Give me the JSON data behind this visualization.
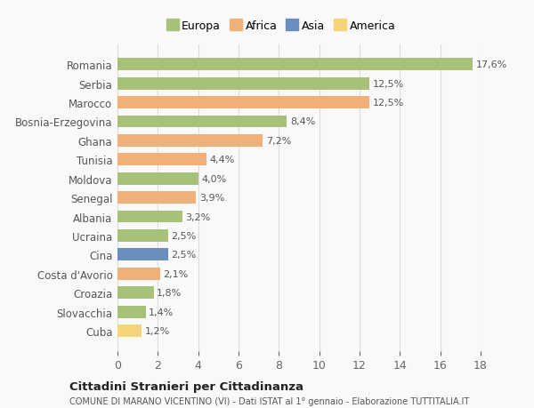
{
  "countries": [
    "Romania",
    "Serbia",
    "Marocco",
    "Bosnia-Erzegovina",
    "Ghana",
    "Tunisia",
    "Moldova",
    "Senegal",
    "Albania",
    "Ucraina",
    "Cina",
    "Costa d'Avorio",
    "Croazia",
    "Slovacchia",
    "Cuba"
  ],
  "values": [
    17.6,
    12.5,
    12.5,
    8.4,
    7.2,
    4.4,
    4.0,
    3.9,
    3.2,
    2.5,
    2.5,
    2.1,
    1.8,
    1.4,
    1.2
  ],
  "labels": [
    "17,6%",
    "12,5%",
    "12,5%",
    "8,4%",
    "7,2%",
    "4,4%",
    "4,0%",
    "3,9%",
    "3,2%",
    "2,5%",
    "2,5%",
    "2,1%",
    "1,8%",
    "1,4%",
    "1,2%"
  ],
  "colors": [
    "#a8c17a",
    "#a8c17a",
    "#f0b07a",
    "#a8c17a",
    "#f0b07a",
    "#f0b07a",
    "#a8c17a",
    "#f0b07a",
    "#a8c17a",
    "#a8c17a",
    "#6a8fbf",
    "#f0b07a",
    "#a8c17a",
    "#a8c17a",
    "#f5d57a"
  ],
  "legend_labels": [
    "Europa",
    "Africa",
    "Asia",
    "America"
  ],
  "legend_colors": [
    "#a8c17a",
    "#f0b07a",
    "#6a8fbf",
    "#f5d57a"
  ],
  "title": "Cittadini Stranieri per Cittadinanza",
  "subtitle": "COMUNE DI MARANO VICENTINO (VI) - Dati ISTAT al 1° gennaio - Elaborazione TUTTITALIA.IT",
  "xlim": [
    0,
    18
  ],
  "xticks": [
    0,
    2,
    4,
    6,
    8,
    10,
    12,
    14,
    16,
    18
  ],
  "background_color": "#f9f9f9",
  "bar_height": 0.65,
  "gridcolor": "#dddddd"
}
